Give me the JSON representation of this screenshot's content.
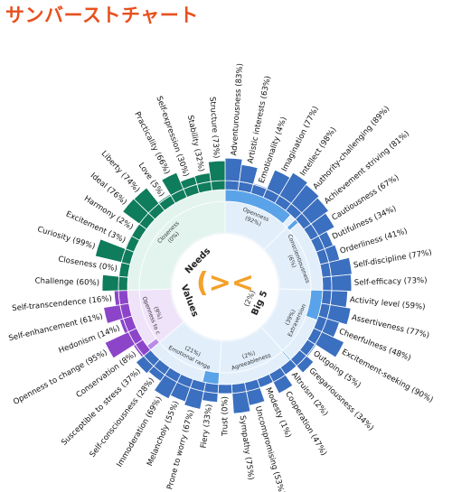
{
  "title": "サンバーストチャート",
  "center_icon": "(>< ",
  "chart_data": {
    "type": "sunburst",
    "colors": {
      "big5_strong": "#3b6fbf",
      "big5_mid": "#5aa3e8",
      "big5_light": "#e2effb",
      "needs_strong": "#0f7c5c",
      "needs_light": "#e3f4ee",
      "values_strong": "#8c45c9",
      "values_mid": "#b98be8",
      "values_light": "#efe3f9"
    },
    "groups": [
      {
        "name": "Big 5",
        "percent": "(2%)",
        "family": "big5",
        "facets": [
          {
            "name": "Openness",
            "percent": "(92%)",
            "value": 92,
            "items": [
              {
                "label": "Adventurousness (83%)",
                "value": 83
              },
              {
                "label": "Artistic interests (63%)",
                "value": 63
              },
              {
                "label": "Emotionality (4%)",
                "value": 4
              },
              {
                "label": "Imagination (77%)",
                "value": 77
              },
              {
                "label": "Intellect (98%)",
                "value": 98
              },
              {
                "label": "Authority-challenging (89%)",
                "value": 89
              }
            ]
          },
          {
            "name": "Conscientiousness",
            "percent": "(6%)",
            "value": 6,
            "items": [
              {
                "label": "Achievement striving (81%)",
                "value": 81
              },
              {
                "label": "Cautiousness (67%)",
                "value": 67
              },
              {
                "label": "Dutifulness (34%)",
                "value": 34
              },
              {
                "label": "Orderliness (41%)",
                "value": 41
              },
              {
                "label": "Self-discipline (77%)",
                "value": 77
              },
              {
                "label": "Self-efficacy (73%)",
                "value": 73
              }
            ]
          },
          {
            "name": "Extraversion",
            "percent": "(39%)",
            "value": 39,
            "items": [
              {
                "label": "Activity level (59%)",
                "value": 59
              },
              {
                "label": "Assertiveness (77%)",
                "value": 77
              },
              {
                "label": "Cheerfulness (48%)",
                "value": 48
              },
              {
                "label": "Excitement-seeking (90%)",
                "value": 90
              },
              {
                "label": "Outgoing (5%)",
                "value": 5
              },
              {
                "label": "Gregariousness (34%)",
                "value": 34
              }
            ]
          },
          {
            "name": "Agreeableness",
            "percent": "(2%)",
            "value": 2,
            "items": [
              {
                "label": "Altruism (2%)",
                "value": 2
              },
              {
                "label": "Cooperation (47%)",
                "value": 47
              },
              {
                "label": "Modesty (1%)",
                "value": 1
              },
              {
                "label": "Uncompromising (53%)",
                "value": 53
              },
              {
                "label": "Sympathy (75%)",
                "value": 75
              },
              {
                "label": "Trust (0%)",
                "value": 0
              }
            ]
          },
          {
            "name": "Emotional range",
            "percent": "(21%)",
            "value": 21,
            "items": [
              {
                "label": "Fiery (33%)",
                "value": 33
              },
              {
                "label": "Prone to worry (67%)",
                "value": 67
              },
              {
                "label": "Melancholy (55%)",
                "value": 55
              },
              {
                "label": "Immoderation (69%)",
                "value": 69
              },
              {
                "label": "Self-consciousness (28%)",
                "value": 28
              },
              {
                "label": "Susceptible to stress (37%)",
                "value": 37
              }
            ]
          }
        ]
      },
      {
        "name": "Values",
        "percent": "",
        "family": "values",
        "facets": [
          {
            "name": "Openness to c",
            "percent": "(9%)",
            "value": 9,
            "items": [
              {
                "label": "Conservation (8%)",
                "value": 8
              },
              {
                "label": "Openness to change (95%)",
                "value": 95
              },
              {
                "label": "Hedonism (14%)",
                "value": 14
              },
              {
                "label": "Self-enhancement (61%)",
                "value": 61
              },
              {
                "label": "Self-transcendence (16%)",
                "value": 16
              }
            ]
          }
        ]
      },
      {
        "name": "Needs",
        "percent": "",
        "family": "needs",
        "facets": [
          {
            "name": "Closeness",
            "percent": "(0%)",
            "value": 0,
            "items": [
              {
                "label": "Challenge (60%)",
                "value": 60
              },
              {
                "label": "Closeness (0%)",
                "value": 0
              },
              {
                "label": "Curiosity (99%)",
                "value": 99
              },
              {
                "label": "Excitement (3%)",
                "value": 3
              },
              {
                "label": "Harmony (2%)",
                "value": 2
              },
              {
                "label": "Ideal (76%)",
                "value": 76
              },
              {
                "label": "Liberty (74%)",
                "value": 74
              },
              {
                "label": "Love (5%)",
                "value": 5
              },
              {
                "label": "Practicality (66%)",
                "value": 66
              },
              {
                "label": "Self-expression (30%)",
                "value": 30
              },
              {
                "label": "Stability (32%)",
                "value": 32
              },
              {
                "label": "Structure (73%)",
                "value": 73
              }
            ]
          }
        ]
      }
    ]
  }
}
